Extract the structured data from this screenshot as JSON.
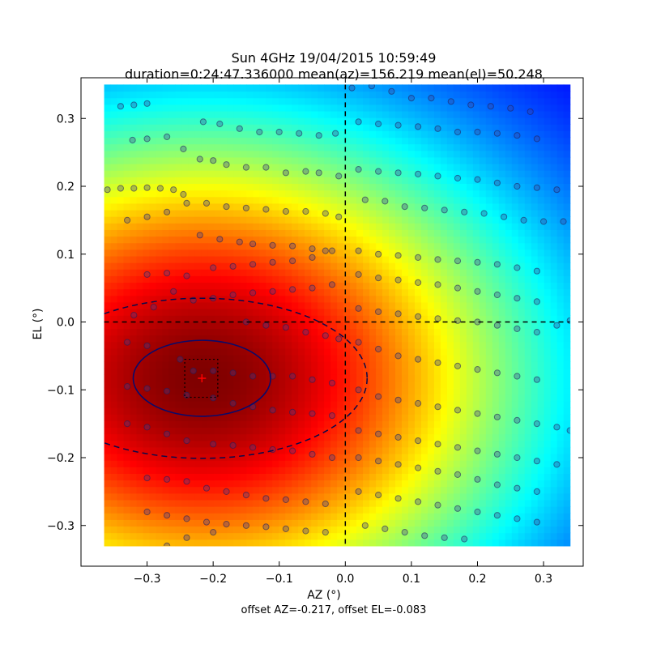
{
  "chart_data": {
    "type": "heatmap",
    "title": "Sun 4GHz 19/04/2015 10:59:49",
    "subtitle": "duration=0:24:47.336000 mean(az)=156.219 mean(el)=50.248",
    "xlabel": "AZ (°)",
    "ylabel": "EL (°)",
    "footer": "offset AZ=-0.217, offset EL=-0.083",
    "xlim": [
      -0.4,
      0.36
    ],
    "ylim": [
      -0.36,
      0.36
    ],
    "image_extent": {
      "x": [
        -0.365,
        0.34
      ],
      "y": [
        -0.33,
        0.35
      ]
    },
    "xticks": [
      {
        "v": -0.3,
        "label": "−0.3"
      },
      {
        "v": -0.2,
        "label": "−0.2"
      },
      {
        "v": -0.1,
        "label": "−0.1"
      },
      {
        "v": 0.0,
        "label": "0.0"
      },
      {
        "v": 0.1,
        "label": "0.1"
      },
      {
        "v": 0.2,
        "label": "0.2"
      },
      {
        "v": 0.3,
        "label": "0.3"
      }
    ],
    "yticks": [
      {
        "v": 0.3,
        "label": "0.3"
      },
      {
        "v": 0.2,
        "label": "0.2"
      },
      {
        "v": 0.1,
        "label": "0.1"
      },
      {
        "v": 0.0,
        "label": "0.0"
      },
      {
        "v": -0.1,
        "label": "−0.1"
      },
      {
        "v": -0.2,
        "label": "−0.2"
      },
      {
        "v": -0.3,
        "label": "−0.3"
      }
    ],
    "colormap": "jet",
    "peak": {
      "az": -0.217,
      "el": -0.083
    },
    "fit_ellipse": {
      "cx": -0.217,
      "cy": -0.083,
      "rx": 0.104,
      "ry": 0.056
    },
    "beam_ellipse": {
      "cx": -0.217,
      "cy": -0.083,
      "rx": 0.25,
      "ry": 0.118
    },
    "error_box": {
      "x": [
        -0.243,
        -0.193
      ],
      "y": [
        -0.111,
        -0.055
      ]
    },
    "crosshair": {
      "x": 0.0,
      "y": 0.0
    },
    "scan_points": [
      [
        -0.36,
        0.195
      ],
      [
        -0.34,
        0.197
      ],
      [
        -0.32,
        0.197
      ],
      [
        -0.3,
        0.198
      ],
      [
        -0.28,
        0.197
      ],
      [
        -0.26,
        0.195
      ],
      [
        -0.245,
        0.188
      ],
      [
        -0.322,
        0.268
      ],
      [
        -0.3,
        0.27
      ],
      [
        -0.27,
        0.273
      ],
      [
        -0.245,
        0.255
      ],
      [
        -0.22,
        0.24
      ],
      [
        -0.2,
        0.238
      ],
      [
        -0.18,
        0.232
      ],
      [
        -0.15,
        0.228
      ],
      [
        -0.12,
        0.228
      ],
      [
        -0.09,
        0.22
      ],
      [
        -0.06,
        0.222
      ],
      [
        -0.04,
        0.22
      ],
      [
        -0.01,
        0.215
      ],
      [
        -0.34,
        0.318
      ],
      [
        -0.32,
        0.32
      ],
      [
        -0.3,
        0.322
      ],
      [
        -0.215,
        0.295
      ],
      [
        -0.19,
        0.292
      ],
      [
        -0.16,
        0.285
      ],
      [
        -0.13,
        0.28
      ],
      [
        -0.1,
        0.28
      ],
      [
        -0.07,
        0.278
      ],
      [
        -0.04,
        0.275
      ],
      [
        -0.015,
        0.278
      ],
      [
        -0.33,
        0.15
      ],
      [
        -0.3,
        0.155
      ],
      [
        -0.27,
        0.162
      ],
      [
        -0.24,
        0.175
      ],
      [
        -0.21,
        0.175
      ],
      [
        -0.18,
        0.17
      ],
      [
        -0.15,
        0.168
      ],
      [
        -0.12,
        0.166
      ],
      [
        -0.09,
        0.163
      ],
      [
        -0.06,
        0.163
      ],
      [
        -0.03,
        0.16
      ],
      [
        -0.01,
        0.155
      ],
      [
        -0.22,
        0.128
      ],
      [
        -0.19,
        0.122
      ],
      [
        -0.16,
        0.118
      ],
      [
        -0.14,
        0.115
      ],
      [
        -0.11,
        0.113
      ],
      [
        -0.08,
        0.112
      ],
      [
        -0.05,
        0.108
      ],
      [
        -0.03,
        0.105
      ],
      [
        -0.3,
        0.07
      ],
      [
        -0.27,
        0.072
      ],
      [
        -0.24,
        0.068
      ],
      [
        -0.2,
        0.08
      ],
      [
        -0.17,
        0.082
      ],
      [
        -0.14,
        0.085
      ],
      [
        -0.11,
        0.088
      ],
      [
        -0.08,
        0.09
      ],
      [
        -0.05,
        0.095
      ],
      [
        -0.02,
        0.105
      ],
      [
        -0.32,
        0.01
      ],
      [
        -0.29,
        0.022
      ],
      [
        -0.26,
        0.045
      ],
      [
        -0.23,
        0.032
      ],
      [
        -0.2,
        0.035
      ],
      [
        -0.17,
        0.04
      ],
      [
        -0.14,
        0.043
      ],
      [
        -0.11,
        0.045
      ],
      [
        -0.08,
        0.048
      ],
      [
        -0.05,
        0.05
      ],
      [
        -0.02,
        0.055
      ],
      [
        -0.15,
        0.0
      ],
      [
        -0.12,
        -0.005
      ],
      [
        -0.09,
        -0.008
      ],
      [
        -0.06,
        -0.015
      ],
      [
        -0.03,
        -0.02
      ],
      [
        -0.01,
        -0.025
      ],
      [
        -0.33,
        -0.03
      ],
      [
        -0.3,
        -0.035
      ],
      [
        -0.25,
        -0.055
      ],
      [
        -0.23,
        -0.072
      ],
      [
        -0.2,
        -0.072
      ],
      [
        -0.17,
        -0.075
      ],
      [
        -0.14,
        -0.08
      ],
      [
        -0.11,
        -0.08
      ],
      [
        -0.08,
        -0.08
      ],
      [
        -0.05,
        -0.085
      ],
      [
        -0.02,
        -0.09
      ],
      [
        -0.33,
        -0.095
      ],
      [
        -0.3,
        -0.098
      ],
      [
        -0.27,
        -0.102
      ],
      [
        -0.24,
        -0.108
      ],
      [
        -0.2,
        -0.112
      ],
      [
        -0.17,
        -0.12
      ],
      [
        -0.14,
        -0.125
      ],
      [
        -0.11,
        -0.13
      ],
      [
        -0.08,
        -0.133
      ],
      [
        -0.05,
        -0.135
      ],
      [
        -0.02,
        -0.138
      ],
      [
        -0.33,
        -0.15
      ],
      [
        -0.3,
        -0.155
      ],
      [
        -0.27,
        -0.165
      ],
      [
        -0.24,
        -0.175
      ],
      [
        -0.2,
        -0.18
      ],
      [
        -0.17,
        -0.182
      ],
      [
        -0.14,
        -0.185
      ],
      [
        -0.11,
        -0.188
      ],
      [
        -0.08,
        -0.19
      ],
      [
        -0.05,
        -0.195
      ],
      [
        -0.02,
        -0.2
      ],
      [
        -0.3,
        -0.23
      ],
      [
        -0.27,
        -0.232
      ],
      [
        -0.24,
        -0.235
      ],
      [
        -0.21,
        -0.245
      ],
      [
        -0.18,
        -0.25
      ],
      [
        -0.15,
        -0.255
      ],
      [
        -0.12,
        -0.26
      ],
      [
        -0.09,
        -0.262
      ],
      [
        -0.06,
        -0.265
      ],
      [
        -0.03,
        -0.268
      ],
      [
        -0.3,
        -0.28
      ],
      [
        -0.27,
        -0.285
      ],
      [
        -0.24,
        -0.29
      ],
      [
        -0.21,
        -0.295
      ],
      [
        -0.18,
        -0.298
      ],
      [
        -0.15,
        -0.3
      ],
      [
        -0.12,
        -0.302
      ],
      [
        -0.09,
        -0.305
      ],
      [
        -0.06,
        -0.308
      ],
      [
        -0.03,
        -0.31
      ],
      [
        -0.27,
        -0.33
      ],
      [
        -0.24,
        -0.318
      ],
      [
        -0.2,
        -0.31
      ],
      [
        0.01,
        0.345
      ],
      [
        0.04,
        0.348
      ],
      [
        0.07,
        0.34
      ],
      [
        0.1,
        0.33
      ],
      [
        0.13,
        0.33
      ],
      [
        0.16,
        0.325
      ],
      [
        0.19,
        0.32
      ],
      [
        0.22,
        0.318
      ],
      [
        0.25,
        0.315
      ],
      [
        0.28,
        0.31
      ],
      [
        0.02,
        0.295
      ],
      [
        0.05,
        0.292
      ],
      [
        0.08,
        0.29
      ],
      [
        0.11,
        0.288
      ],
      [
        0.14,
        0.285
      ],
      [
        0.17,
        0.28
      ],
      [
        0.2,
        0.28
      ],
      [
        0.23,
        0.278
      ],
      [
        0.26,
        0.275
      ],
      [
        0.29,
        0.27
      ],
      [
        0.02,
        0.225
      ],
      [
        0.05,
        0.222
      ],
      [
        0.08,
        0.22
      ],
      [
        0.11,
        0.218
      ],
      [
        0.14,
        0.215
      ],
      [
        0.17,
        0.212
      ],
      [
        0.2,
        0.21
      ],
      [
        0.23,
        0.205
      ],
      [
        0.26,
        0.2
      ],
      [
        0.29,
        0.198
      ],
      [
        0.32,
        0.195
      ],
      [
        0.03,
        0.18
      ],
      [
        0.06,
        0.178
      ],
      [
        0.09,
        0.17
      ],
      [
        0.12,
        0.168
      ],
      [
        0.15,
        0.165
      ],
      [
        0.18,
        0.162
      ],
      [
        0.21,
        0.16
      ],
      [
        0.24,
        0.155
      ],
      [
        0.27,
        0.15
      ],
      [
        0.3,
        0.148
      ],
      [
        0.33,
        0.148
      ],
      [
        0.02,
        0.105
      ],
      [
        0.05,
        0.1
      ],
      [
        0.08,
        0.098
      ],
      [
        0.11,
        0.095
      ],
      [
        0.14,
        0.092
      ],
      [
        0.17,
        0.09
      ],
      [
        0.2,
        0.088
      ],
      [
        0.23,
        0.085
      ],
      [
        0.26,
        0.08
      ],
      [
        0.29,
        0.075
      ],
      [
        0.02,
        0.07
      ],
      [
        0.05,
        0.065
      ],
      [
        0.08,
        0.062
      ],
      [
        0.11,
        0.058
      ],
      [
        0.14,
        0.055
      ],
      [
        0.17,
        0.05
      ],
      [
        0.2,
        0.045
      ],
      [
        0.23,
        0.04
      ],
      [
        0.26,
        0.035
      ],
      [
        0.29,
        0.03
      ],
      [
        0.02,
        0.02
      ],
      [
        0.05,
        0.015
      ],
      [
        0.08,
        0.012
      ],
      [
        0.11,
        0.008
      ],
      [
        0.14,
        0.005
      ],
      [
        0.17,
        0.002
      ],
      [
        0.2,
        0.0
      ],
      [
        0.23,
        -0.005
      ],
      [
        0.26,
        -0.01
      ],
      [
        0.29,
        -0.015
      ],
      [
        0.32,
        -0.005
      ],
      [
        0.34,
        0.002
      ],
      [
        0.02,
        -0.03
      ],
      [
        0.05,
        -0.04
      ],
      [
        0.08,
        -0.05
      ],
      [
        0.11,
        -0.055
      ],
      [
        0.14,
        -0.06
      ],
      [
        0.17,
        -0.065
      ],
      [
        0.2,
        -0.07
      ],
      [
        0.23,
        -0.075
      ],
      [
        0.26,
        -0.08
      ],
      [
        0.29,
        -0.085
      ],
      [
        0.02,
        -0.1
      ],
      [
        0.05,
        -0.11
      ],
      [
        0.08,
        -0.115
      ],
      [
        0.11,
        -0.12
      ],
      [
        0.14,
        -0.125
      ],
      [
        0.17,
        -0.13
      ],
      [
        0.2,
        -0.135
      ],
      [
        0.23,
        -0.14
      ],
      [
        0.26,
        -0.145
      ],
      [
        0.29,
        -0.15
      ],
      [
        0.32,
        -0.155
      ],
      [
        0.34,
        -0.16
      ],
      [
        0.02,
        -0.16
      ],
      [
        0.05,
        -0.165
      ],
      [
        0.08,
        -0.17
      ],
      [
        0.11,
        -0.175
      ],
      [
        0.14,
        -0.18
      ],
      [
        0.17,
        -0.185
      ],
      [
        0.2,
        -0.19
      ],
      [
        0.23,
        -0.195
      ],
      [
        0.26,
        -0.2
      ],
      [
        0.29,
        -0.205
      ],
      [
        0.32,
        -0.21
      ],
      [
        0.02,
        -0.2
      ],
      [
        0.05,
        -0.205
      ],
      [
        0.08,
        -0.21
      ],
      [
        0.11,
        -0.215
      ],
      [
        0.14,
        -0.22
      ],
      [
        0.17,
        -0.225
      ],
      [
        0.2,
        -0.232
      ],
      [
        0.23,
        -0.24
      ],
      [
        0.26,
        -0.245
      ],
      [
        0.29,
        -0.25
      ],
      [
        0.02,
        -0.25
      ],
      [
        0.05,
        -0.255
      ],
      [
        0.08,
        -0.26
      ],
      [
        0.11,
        -0.265
      ],
      [
        0.14,
        -0.27
      ],
      [
        0.17,
        -0.275
      ],
      [
        0.2,
        -0.28
      ],
      [
        0.23,
        -0.285
      ],
      [
        0.26,
        -0.29
      ],
      [
        0.29,
        -0.295
      ],
      [
        0.03,
        -0.3
      ],
      [
        0.06,
        -0.305
      ],
      [
        0.09,
        -0.31
      ],
      [
        0.12,
        -0.315
      ],
      [
        0.15,
        -0.318
      ],
      [
        0.18,
        -0.32
      ]
    ]
  }
}
